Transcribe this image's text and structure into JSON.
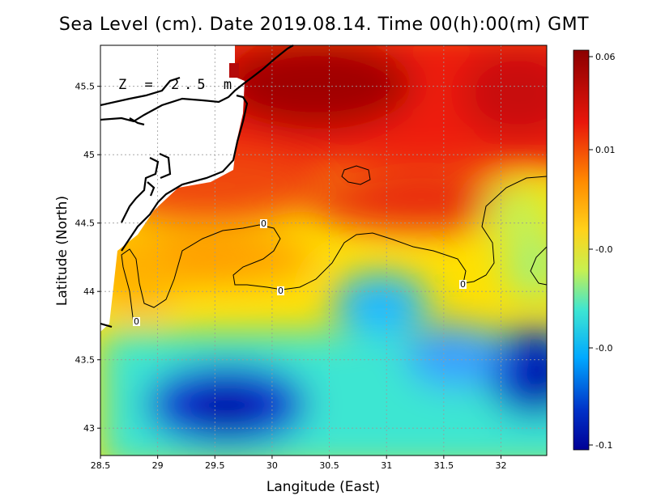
{
  "title": "Sea Level (cm). Date 2019.08.14. Time 00(h):00(m) GMT",
  "depth_label": "Z = 2.5 m",
  "x_axis": {
    "label": "Langitude (East)",
    "range": [
      28.5,
      32.4
    ],
    "ticks": [
      28.5,
      29,
      29.5,
      30,
      30.5,
      31,
      31.5,
      32
    ],
    "tick_labels": [
      "28.5",
      "29",
      "29.5",
      "30",
      "30.5",
      "31",
      "31.5",
      "32"
    ]
  },
  "y_axis": {
    "label": "Latitude (North)",
    "range": [
      42.8,
      45.8
    ],
    "ticks": [
      43,
      43.5,
      44,
      44.5,
      45,
      45.5
    ],
    "tick_labels": [
      "43",
      "43.5",
      "44",
      "44.5",
      "45",
      "45.5"
    ]
  },
  "colorbar": {
    "tick_labels": [
      "0.06",
      "0.01",
      "-0.0",
      "-0.0",
      "-0.1"
    ],
    "colors": [
      "#8b0000",
      "#e8160b",
      "#ff8c00",
      "#ffd21a",
      "#c8f050",
      "#3ee6d2",
      "#00a8ff",
      "#0032c8",
      "#000096"
    ]
  },
  "contour_labels": [
    "0",
    "0",
    "0",
    "0"
  ],
  "chart_data": {
    "type": "heatmap",
    "title": "Sea Level (cm). Date 2019.08.14. Time 00(h):00(m) GMT",
    "xlabel": "Langitude (East)",
    "ylabel": "Latitude (North)",
    "xlim": [
      28.5,
      32.4
    ],
    "ylim": [
      42.8,
      45.8
    ],
    "value_range": [
      -0.1,
      0.06
    ],
    "features": [
      {
        "name": "maximum",
        "lon": 30.4,
        "lat": 45.45,
        "value": 0.06
      },
      {
        "name": "minimum",
        "lon": 29.6,
        "lat": 43.15,
        "value": -0.1
      },
      {
        "name": "minimum",
        "lon": 32.3,
        "lat": 43.45,
        "value": -0.09
      },
      {
        "name": "local low",
        "lon": 31.0,
        "lat": 43.9,
        "value": -0.04
      }
    ],
    "zero_contour_label_positions": [
      {
        "lon": 29.92,
        "lat": 44.5
      },
      {
        "lon": 30.05,
        "lat": 44.0
      },
      {
        "lon": 31.67,
        "lat": 44.05
      },
      {
        "lon": 28.82,
        "lat": 43.78
      }
    ]
  }
}
